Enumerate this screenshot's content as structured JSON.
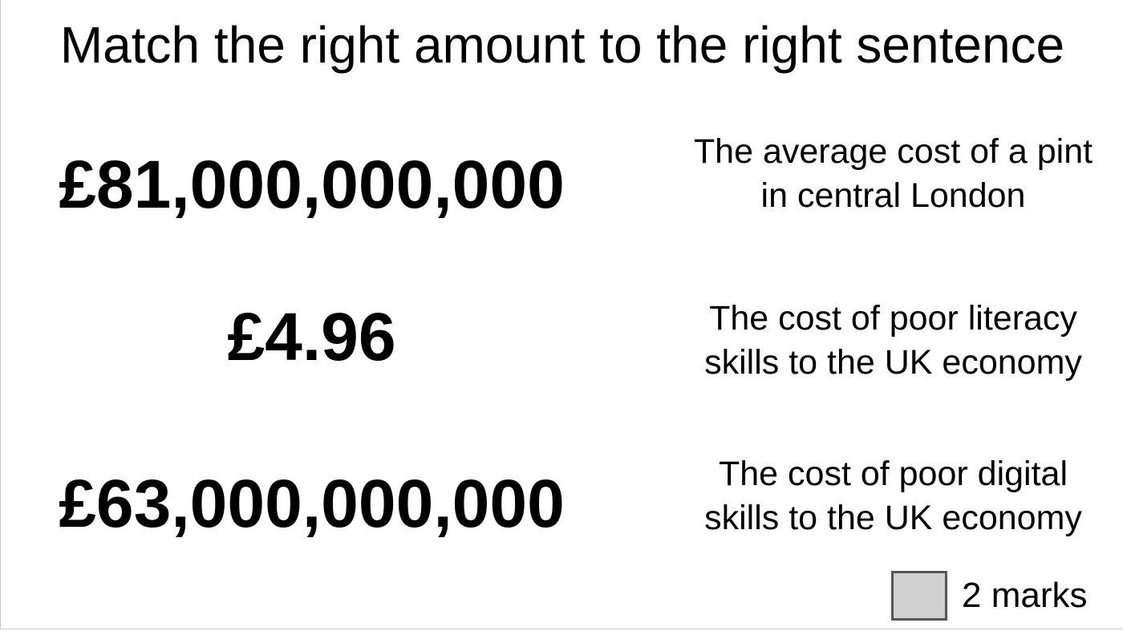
{
  "title": "Match the right amount to the right sentence",
  "amounts": [
    "£81,000,000,000",
    "£4.96",
    "£63,000,000,000"
  ],
  "sentences": [
    {
      "line1": "The average cost of a pint",
      "line2": "in central London"
    },
    {
      "line1": "The cost of poor literacy",
      "line2": "skills to the UK economy"
    },
    {
      "line1": "The cost of poor digital",
      "line2": "skills to the UK economy"
    }
  ],
  "marks": {
    "label": "2 marks",
    "box_color": "#d0d0d0"
  }
}
